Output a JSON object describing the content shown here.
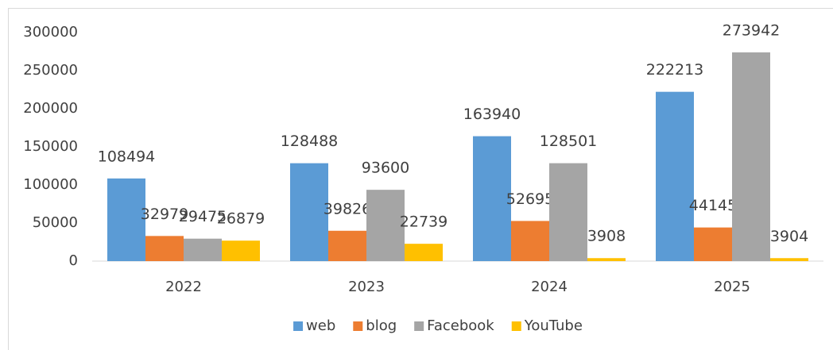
{
  "chart_data": {
    "type": "bar",
    "categories": [
      "2022",
      "2023",
      "2024",
      "2025"
    ],
    "series": [
      {
        "name": "web",
        "color": "#5b9bd5",
        "values": [
          108494,
          128488,
          163940,
          222213
        ]
      },
      {
        "name": "blog",
        "color": "#ed7d31",
        "values": [
          32979,
          39826,
          52695,
          44145
        ]
      },
      {
        "name": "Facebook",
        "color": "#a5a5a5",
        "values": [
          29475,
          93600,
          128501,
          273942
        ]
      },
      {
        "name": "YouTube",
        "color": "#ffc000",
        "values": [
          26879,
          22739,
          3908,
          3904
        ]
      }
    ],
    "ylim": [
      0,
      300000
    ],
    "yticks": [
      0,
      50000,
      100000,
      150000,
      200000,
      250000,
      300000
    ],
    "grid": false,
    "legend": "bottom"
  }
}
